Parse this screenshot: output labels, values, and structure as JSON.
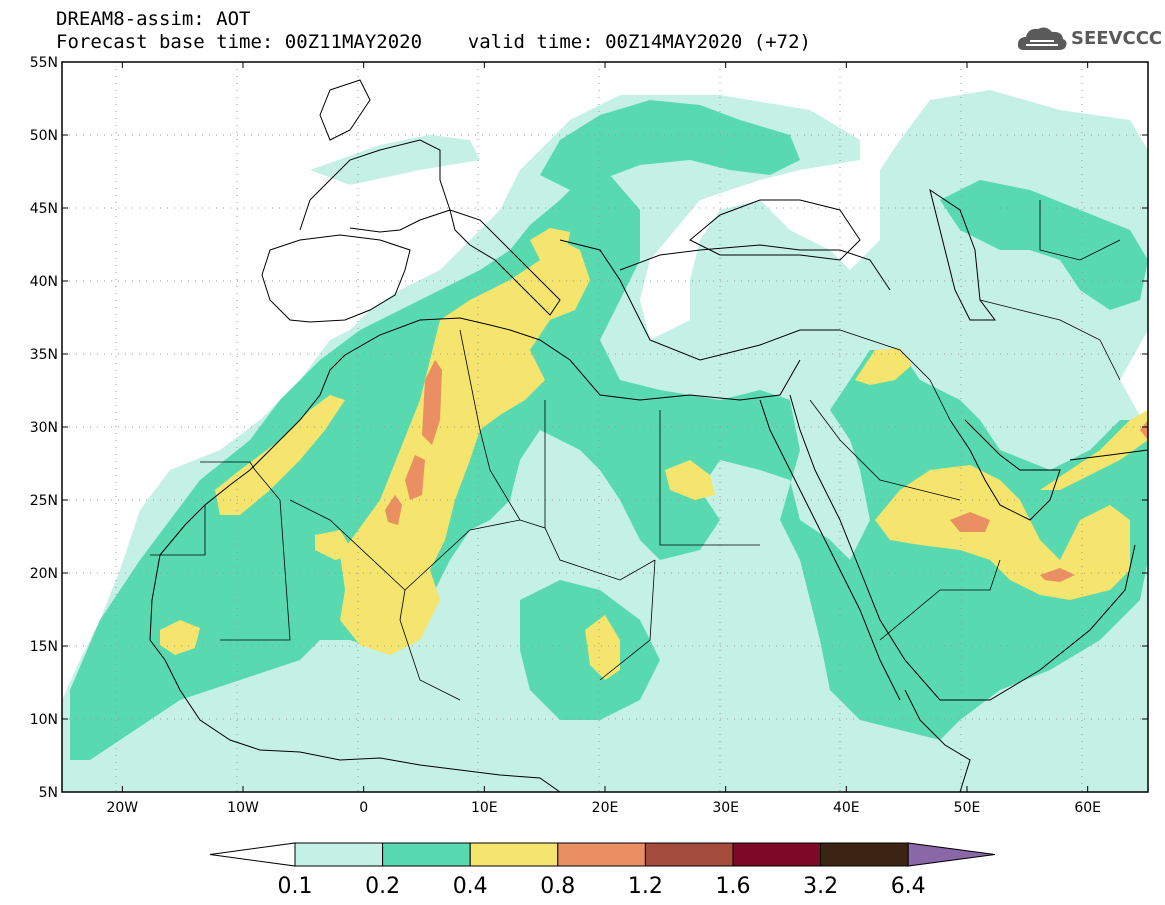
{
  "title": {
    "line1": "DREAM8-assim: AOT",
    "line2": "Forecast base time: 00Z11MAY2020    valid time: 00Z14MAY2020 (+72)"
  },
  "logo": {
    "text": "SEEVCCC",
    "icon": "cloud-icon",
    "color": "#5a5a5a"
  },
  "map": {
    "lon_range": [
      -25,
      65
    ],
    "lat_range": [
      5,
      55
    ],
    "lat_ticks": [
      {
        "value": 55,
        "label": "55N"
      },
      {
        "value": 50,
        "label": "50N"
      },
      {
        "value": 45,
        "label": "45N"
      },
      {
        "value": 40,
        "label": "40N"
      },
      {
        "value": 35,
        "label": "35N"
      },
      {
        "value": 30,
        "label": "30N"
      },
      {
        "value": 25,
        "label": "25N"
      },
      {
        "value": 20,
        "label": "20N"
      },
      {
        "value": 15,
        "label": "15N"
      },
      {
        "value": 10,
        "label": "10N"
      },
      {
        "value": 5,
        "label": "5N"
      }
    ],
    "lon_ticks": [
      {
        "value": -20,
        "label": "20W"
      },
      {
        "value": -10,
        "label": "10W"
      },
      {
        "value": 0,
        "label": "0"
      },
      {
        "value": 10,
        "label": "10E"
      },
      {
        "value": 20,
        "label": "20E"
      },
      {
        "value": 30,
        "label": "30E"
      },
      {
        "value": 40,
        "label": "40E"
      },
      {
        "value": 50,
        "label": "50E"
      },
      {
        "value": 60,
        "label": "60E"
      }
    ],
    "grid": true,
    "variable": "AOT"
  },
  "colorbar": {
    "levels": [
      "0.1",
      "0.2",
      "0.4",
      "0.8",
      "1.2",
      "1.6",
      "3.2",
      "6.4"
    ],
    "colors": [
      "#c5f0e6",
      "#58d9b0",
      "#f5e46e",
      "#e98f62",
      "#a34b3c",
      "#7c0a26",
      "#3c2414",
      "#8a67a6"
    ],
    "under_color": "#ffffff",
    "over_color": "#8a67a6"
  }
}
